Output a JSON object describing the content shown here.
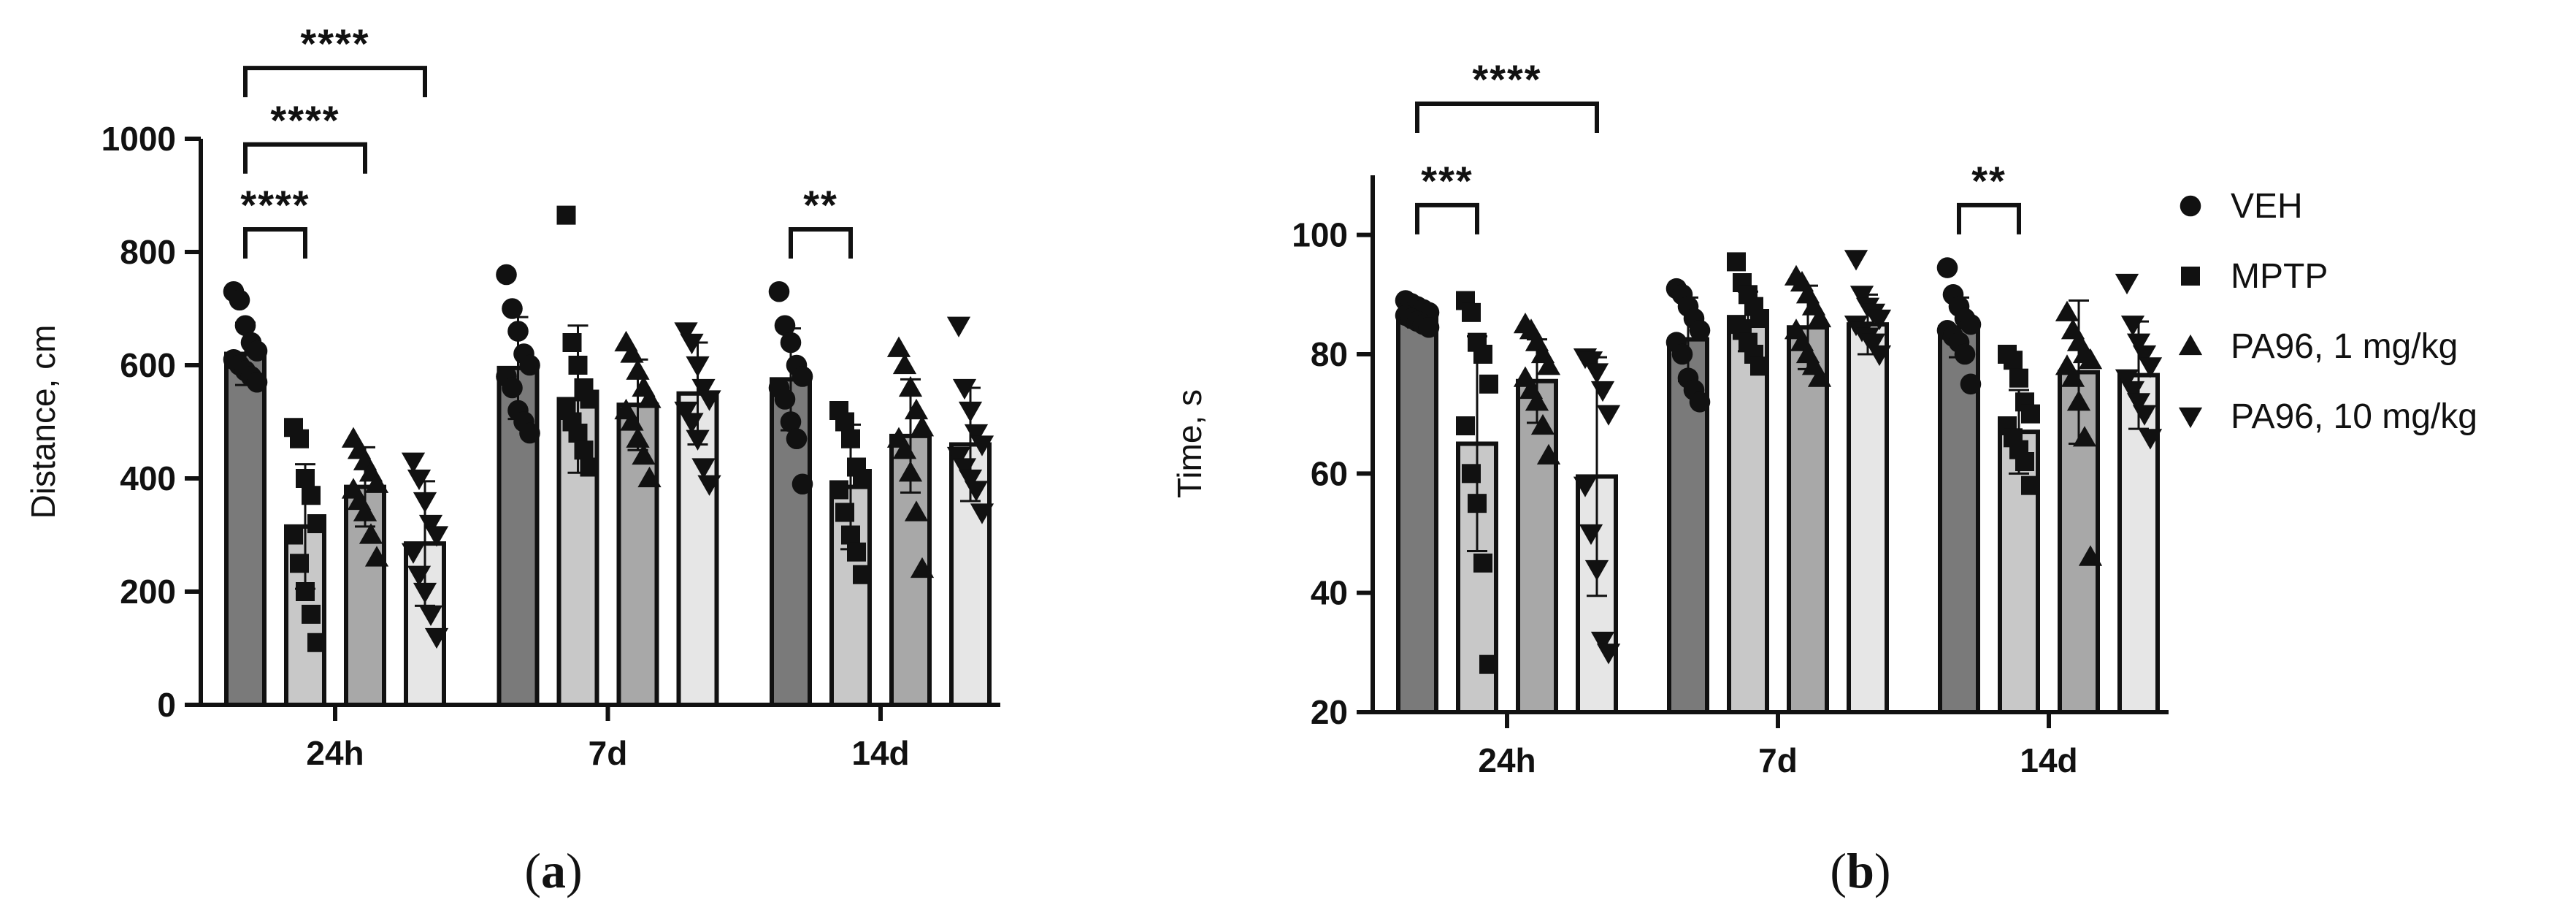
{
  "chart_data": [
    {
      "type": "bar",
      "panel_label": "(a)",
      "panel_letter": "a",
      "ylabel": "Distance, cm",
      "ylim": [
        0,
        1000
      ],
      "yticks": [
        0,
        200,
        400,
        600,
        800,
        1000
      ],
      "categories": [
        "24h",
        "7d",
        "14d"
      ],
      "series": [
        {
          "name": "VEH",
          "marker": "circle",
          "fill": "#7a7a7a",
          "values": [
            620,
            595,
            575
          ],
          "sd": [
            55,
            90,
            90
          ],
          "points": [
            [
              730,
              715,
              670,
              640,
              625,
              610,
              600,
              590,
              580,
              570
            ],
            [
              760,
              700,
              660,
              620,
              600,
              580,
              560,
              520,
              500,
              480
            ],
            [
              730,
              670,
              640,
              600,
              580,
              560,
              540,
              500,
              470,
              390
            ]
          ]
        },
        {
          "name": "MPTP",
          "marker": "square",
          "fill": "#c8c8c8",
          "values": [
            315,
            540,
            385
          ],
          "sd": [
            110,
            130,
            110
          ],
          "points": [
            [
              490,
              470,
              400,
              370,
              320,
              300,
              250,
              200,
              160,
              110
            ],
            [
              865,
              640,
              600,
              560,
              540,
              520,
              500,
              480,
              450,
              420
            ],
            [
              520,
              500,
              470,
              420,
              400,
              380,
              340,
              300,
              270,
              230
            ]
          ]
        },
        {
          "name": "PA96, 1 mg/kg",
          "marker": "triangle-up",
          "fill": "#a8a8a8",
          "values": [
            385,
            530,
            475
          ],
          "sd": [
            70,
            80,
            100
          ],
          "points": [
            [
              470,
              450,
              430,
              410,
              390,
              380,
              360,
              340,
              300,
              260
            ],
            [
              640,
              620,
              590,
              560,
              540,
              520,
              500,
              470,
              440,
              400
            ],
            [
              630,
              600,
              560,
              520,
              490,
              470,
              450,
              410,
              340,
              240
            ]
          ]
        },
        {
          "name": "PA96, 10 mg/kg",
          "marker": "triangle-down",
          "fill": "#e6e6e6",
          "values": [
            285,
            550,
            460
          ],
          "sd": [
            110,
            90,
            100
          ],
          "points": [
            [
              430,
              400,
              360,
              320,
              300,
              270,
              230,
              200,
              160,
              120
            ],
            [
              660,
              640,
              600,
              560,
              540,
              520,
              500,
              470,
              420,
              390
            ],
            [
              670,
              560,
              520,
              480,
              460,
              440,
              420,
              400,
              380,
              340
            ]
          ]
        }
      ],
      "significance": [
        {
          "label": "****",
          "category": "24h",
          "from": 0,
          "to": 1,
          "y": 840
        },
        {
          "label": "****",
          "category": "24h",
          "from": 0,
          "to": 2,
          "y": 990
        },
        {
          "label": "****",
          "category": "24h",
          "from": 0,
          "to": 3,
          "y": 1125
        },
        {
          "label": "**",
          "category": "14d",
          "from": 0,
          "to": 1,
          "y": 840
        }
      ]
    },
    {
      "type": "bar",
      "panel_label": "(b)",
      "panel_letter": "b",
      "ylabel": "Time, s",
      "ylim": [
        20,
        100
      ],
      "yticks": [
        20,
        40,
        60,
        80,
        100
      ],
      "categories": [
        "24h",
        "7d",
        "14d"
      ],
      "series": [
        {
          "name": "VEH",
          "marker": "circle",
          "fill": "#7a7a7a",
          "values": [
            86.5,
            82.5,
            84.5
          ],
          "sd": [
            2,
            7,
            5
          ],
          "points": [
            [
              89,
              88.5,
              88,
              87.5,
              87,
              86.5,
              86,
              85.5,
              85,
              84.5
            ],
            [
              91,
              90,
              88,
              86,
              84,
              82,
              80,
              76,
              74,
              72
            ],
            [
              94.5,
              90,
              88,
              86,
              85,
              84,
              83,
              82,
              80,
              75
            ]
          ]
        },
        {
          "name": "MPTP",
          "marker": "square",
          "fill": "#c8c8c8",
          "values": [
            65,
            85.5,
            67
          ],
          "sd": [
            18,
            5,
            7
          ],
          "points": [
            [
              89,
              87,
              82,
              80,
              75,
              68,
              60,
              55,
              45,
              28
            ],
            [
              95.5,
              92,
              90,
              88,
              86,
              85,
              84,
              82,
              80,
              78
            ],
            [
              80,
              79,
              76,
              72,
              70,
              68,
              66,
              64,
              62,
              58
            ]
          ]
        },
        {
          "name": "PA96, 1 mg/kg",
          "marker": "triangle-up",
          "fill": "#a8a8a8",
          "values": [
            75.5,
            84.5,
            77
          ],
          "sd": [
            7,
            7,
            12
          ],
          "points": [
            [
              85,
              84,
              82,
              80,
              78,
              76,
              74,
              72,
              68,
              63
            ],
            [
              93,
              92,
              90,
              88,
              86,
              84,
              82,
              80,
              78,
              76
            ],
            [
              87,
              84,
              82,
              80,
              79,
              78,
              76,
              72,
              66,
              46
            ]
          ]
        },
        {
          "name": "PA96, 10 mg/kg",
          "marker": "triangle-down",
          "fill": "#e6e6e6",
          "values": [
            59.5,
            85,
            76.5
          ],
          "sd": [
            20,
            5,
            9
          ],
          "points": [
            [
              79.5,
              79,
              77,
              74,
              70,
              58,
              50,
              44,
              32,
              30
            ],
            [
              96,
              90,
              88,
              87,
              86,
              85,
              84,
              83,
              82,
              80
            ],
            [
              92,
              85,
              82,
              80,
              78,
              76,
              74,
              72,
              70,
              66
            ]
          ]
        }
      ],
      "significance": [
        {
          "label": "***",
          "category": "24h",
          "from": 0,
          "to": 1,
          "y": 105
        },
        {
          "label": "****",
          "category": "24h",
          "from": 0,
          "to": 3,
          "y": 122
        },
        {
          "label": "**",
          "category": "14d",
          "from": 0,
          "to": 1,
          "y": 105
        }
      ]
    }
  ],
  "legend": {
    "placement": "right",
    "entries": [
      {
        "label": "VEH",
        "marker": "circle"
      },
      {
        "label": "MPTP",
        "marker": "square"
      },
      {
        "label": "PA96, 1 mg/kg",
        "marker": "triangle-up"
      },
      {
        "label": "PA96, 10 mg/kg",
        "marker": "triangle-down"
      }
    ]
  }
}
